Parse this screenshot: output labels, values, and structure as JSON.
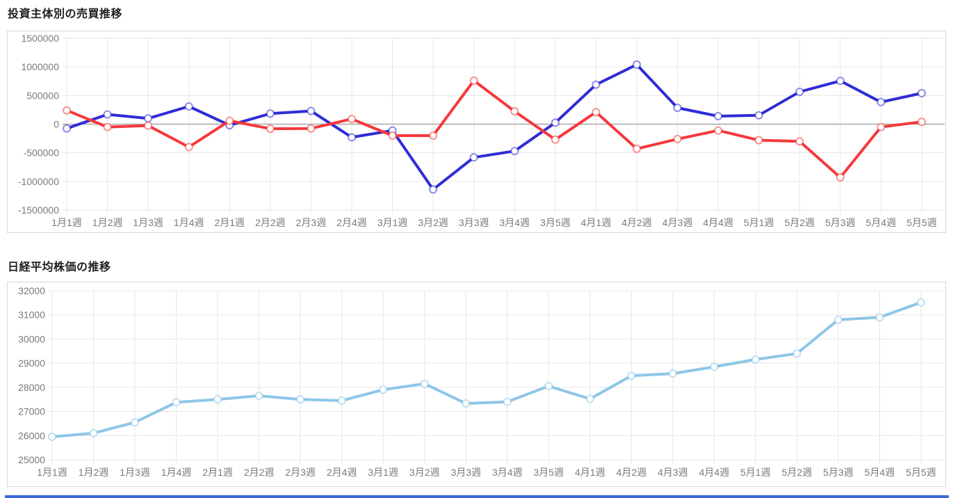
{
  "page": {
    "bottom_bar_color": "#3b68d9",
    "grid_color": "#e6e6e6",
    "zero_line_color": "#9b9b9b",
    "tick_color": "#7a7a7a"
  },
  "chart_data": [
    {
      "type": "line",
      "title": "投資主体別の売買推移",
      "categories": [
        "1月1週",
        "1月2週",
        "1月3週",
        "1月4週",
        "2月1週",
        "2月2週",
        "2月3週",
        "2月4週",
        "3月1週",
        "3月2週",
        "3月3週",
        "3月4週",
        "3月5週",
        "4月1週",
        "4月2週",
        "4月3週",
        "4月4週",
        "5月1週",
        "5月2週",
        "5月3週",
        "5月4週",
        "5月5週"
      ],
      "series": [
        {
          "name": "red-line",
          "color": "#f5383c",
          "values": [
            240000,
            -50000,
            -25000,
            -400000,
            60000,
            -80000,
            -75000,
            90000,
            -200000,
            -200000,
            760000,
            225000,
            -270000,
            210000,
            -430000,
            -260000,
            -110000,
            -280000,
            -300000,
            -930000,
            -50000,
            40000
          ]
        },
        {
          "name": "blue-line",
          "color": "#2f2cd6",
          "values": [
            -75000,
            170000,
            100000,
            310000,
            -20000,
            185000,
            230000,
            -230000,
            -110000,
            -1140000,
            -580000,
            -470000,
            25000,
            690000,
            1040000,
            285000,
            140000,
            155000,
            565000,
            755000,
            385000,
            540000
          ]
        }
      ],
      "ylim": [
        -1500000,
        1500000
      ],
      "ytick_step": 500000,
      "ytick_labels": [
        "1500000",
        "1000000",
        "500000",
        "0",
        "-500000",
        "-1000000",
        "-1500000"
      ],
      "grid": true,
      "legend": "none",
      "zero_line": true
    },
    {
      "type": "line",
      "title": "日経平均株価の推移",
      "categories": [
        "1月1週",
        "1月2週",
        "1月3週",
        "1月4週",
        "2月1週",
        "2月2週",
        "2月3週",
        "2月4週",
        "3月1週",
        "3月2週",
        "3月3週",
        "3月4週",
        "3月5週",
        "4月1週",
        "4月2週",
        "4月3週",
        "4月4週",
        "5月1週",
        "5月2週",
        "5月3週",
        "5月4週",
        "5月5週"
      ],
      "series": [
        {
          "name": "nikkei-line",
          "color": "#8dc6e8",
          "values": [
            25950,
            26100,
            26550,
            27380,
            27500,
            27650,
            27500,
            27450,
            27900,
            28150,
            27330,
            27400,
            28050,
            27520,
            28480,
            28570,
            28850,
            29150,
            29400,
            30800,
            30900,
            31520
          ]
        }
      ],
      "ylim": [
        25000,
        32000
      ],
      "ytick_step": 1000,
      "ytick_labels": [
        "32000",
        "31000",
        "30000",
        "29000",
        "28000",
        "27000",
        "26000",
        "25000"
      ],
      "grid": true,
      "legend": "none",
      "zero_line": false
    }
  ]
}
